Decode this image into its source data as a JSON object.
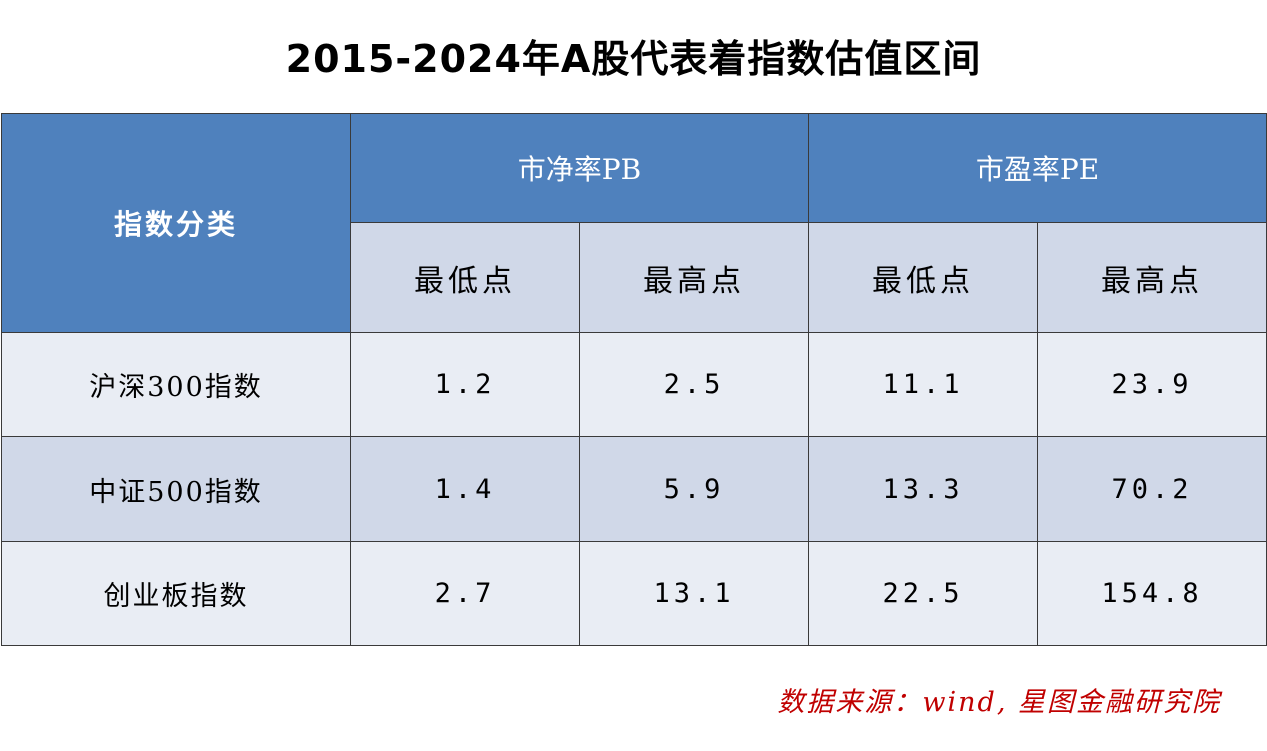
{
  "title": "2015-2024年A股代表着指数估值区间",
  "chart_data": {
    "type": "table",
    "title": "2015-2024年A股代表着指数估值区间",
    "header": {
      "category_label": "指数分类",
      "groups": [
        "市净率PB",
        "市盈率PE"
      ],
      "subheaders": [
        "最低点",
        "最高点",
        "最低点",
        "最高点"
      ]
    },
    "rows": [
      {
        "name": "沪深300指数",
        "values": [
          "1.2",
          "2.5",
          "11.1",
          "23.9"
        ]
      },
      {
        "name": "中证500指数",
        "values": [
          "1.4",
          "5.9",
          "13.3",
          "70.2"
        ]
      },
      {
        "name": "创业板指数",
        "values": [
          "2.7",
          "13.1",
          "22.5",
          "154.8"
        ]
      }
    ]
  },
  "source": "数据来源：wind, 星图金融研究院",
  "colors": {
    "header_blue": "#4f81bd",
    "subheader_bg": "#d0d8e8",
    "row_light": "#e9edf4",
    "source_red": "#c00000"
  }
}
